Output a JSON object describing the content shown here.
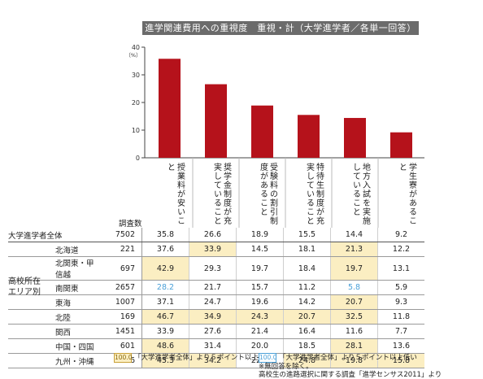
{
  "chart_data": {
    "type": "bar",
    "title": "進学関連費用への重視度　重視・計（大学進学者／各単一回答）",
    "y_unit": "（%）",
    "ylim": [
      0,
      40
    ],
    "yticks": [
      0,
      10,
      20,
      30,
      40
    ],
    "grid": false,
    "bar_color": "#b5121b",
    "categories": [
      "授業料が安いこと",
      "奨学金制度が充実していること",
      "受験料の割引制度があること",
      "特待生制度が充実していること",
      "地方入試を実施していること",
      "学生寮があること"
    ],
    "values": [
      35.8,
      26.6,
      18.9,
      15.5,
      14.4,
      9.2
    ]
  },
  "table": {
    "count_header": "調査数",
    "total": {
      "label": "大学進学者全体",
      "count": "7502",
      "values": [
        "35.8",
        "26.6",
        "18.9",
        "15.5",
        "14.4",
        "9.2"
      ]
    },
    "group_label": "高校所在エリア別",
    "rows": [
      {
        "label": "北海道",
        "count": "221",
        "values": [
          "37.6",
          "33.9",
          "14.5",
          "18.1",
          "21.3",
          "12.2"
        ],
        "marks": [
          "",
          "hi",
          "",
          "",
          "hi",
          ""
        ]
      },
      {
        "label": "北関東・甲信越",
        "count": "697",
        "values": [
          "42.9",
          "29.3",
          "19.7",
          "18.4",
          "19.7",
          "13.1"
        ],
        "marks": [
          "hi",
          "",
          "",
          "",
          "hi",
          ""
        ]
      },
      {
        "label": "南関東",
        "count": "2657",
        "values": [
          "28.2",
          "21.7",
          "15.7",
          "11.2",
          "5.8",
          "5.9"
        ],
        "marks": [
          "lo",
          "",
          "",
          "",
          "lo",
          ""
        ]
      },
      {
        "label": "東海",
        "count": "1007",
        "values": [
          "37.1",
          "24.7",
          "19.6",
          "14.2",
          "20.7",
          "9.3"
        ],
        "marks": [
          "",
          "",
          "",
          "",
          "hi",
          ""
        ]
      },
      {
        "label": "北陸",
        "count": "169",
        "values": [
          "46.7",
          "34.9",
          "24.3",
          "20.7",
          "32.5",
          "11.8"
        ],
        "marks": [
          "hi",
          "hi",
          "hi",
          "hi",
          "hi",
          ""
        ]
      },
      {
        "label": "関西",
        "count": "1451",
        "values": [
          "33.9",
          "27.6",
          "21.4",
          "16.4",
          "11.6",
          "7.7"
        ],
        "marks": [
          "",
          "",
          "",
          "",
          "",
          ""
        ]
      },
      {
        "label": "中国・四国",
        "count": "601",
        "values": [
          "48.6",
          "31.4",
          "20.0",
          "18.5",
          "28.1",
          "13.6"
        ],
        "marks": [
          "hi",
          "",
          "",
          "",
          "hi",
          ""
        ]
      },
      {
        "label": "九州・沖縄",
        "count": "666",
        "values": [
          "45.3",
          "34.2",
          "22.1",
          "24.8",
          "19.8",
          "15.8"
        ],
        "marks": [
          "hi",
          "hi",
          "",
          "hi",
          "hi",
          "hi"
        ]
      }
    ]
  },
  "legend": {
    "hi_swatch": "100.0",
    "hi_text": "「大学進学者全体」より５ポイント以上高い",
    "lo_swatch": "100.0",
    "lo_text": "「大学進学者全体」より５ポイント以上低い"
  },
  "notes": {
    "line1": "※無回答を除く。",
    "line2": "高校生の進路選択に関する調査「進学センサス2011」より"
  }
}
